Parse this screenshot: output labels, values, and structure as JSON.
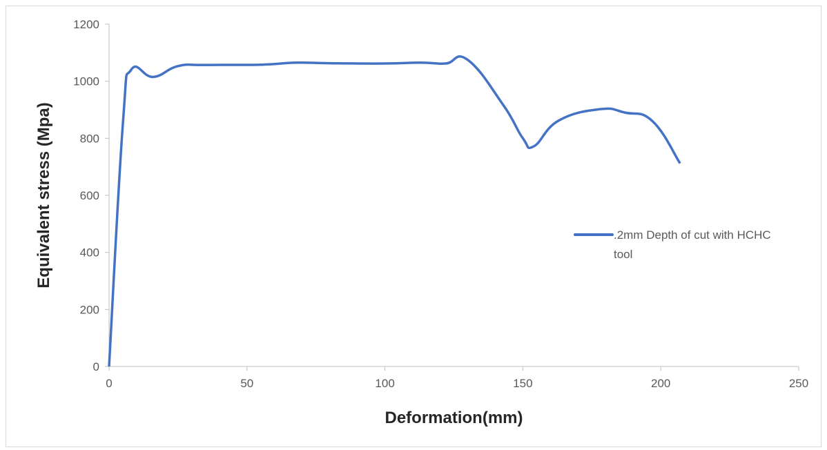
{
  "chart_data": {
    "type": "line",
    "title": "",
    "xlabel": "Deformation(mm)",
    "ylabel": "Equivalent stress (Mpa)",
    "xlim": [
      0,
      250
    ],
    "ylim": [
      0,
      1200
    ],
    "xticks": [
      0,
      50,
      100,
      150,
      200,
      250
    ],
    "yticks": [
      0,
      200,
      400,
      600,
      800,
      1000,
      1200
    ],
    "grid": false,
    "legend_position": "right",
    "series": [
      {
        "name": ".2mm Depth of cut with HCHC tool",
        "color": "#4472c4",
        "x": [
          0,
          5,
          8,
          16,
          25,
          35,
          55,
          68,
          80,
          100,
          113,
          122,
          130,
          143,
          150,
          154,
          163,
          178,
          187,
          197,
          207
        ],
        "y": [
          0,
          850,
          1040,
          1015,
          1053,
          1057,
          1058,
          1065,
          1063,
          1062,
          1065,
          1062,
          1075,
          915,
          800,
          772,
          862,
          902,
          890,
          860,
          712
        ]
      }
    ]
  },
  "legend": {
    "line1": ".2mm Depth of cut with HCHC",
    "line2": "tool"
  }
}
